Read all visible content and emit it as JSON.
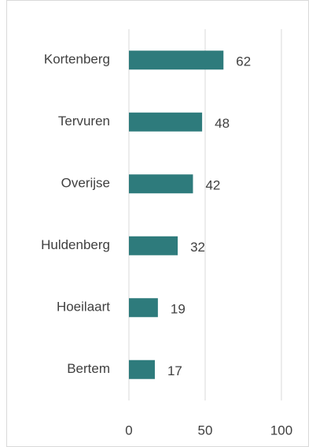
{
  "chart_data": {
    "type": "bar",
    "orientation": "horizontal",
    "categories": [
      "Kortenberg",
      "Tervuren",
      "Overijse",
      "Huldenberg",
      "Hoeilaart",
      "Bertem"
    ],
    "values": [
      62,
      48,
      42,
      32,
      19,
      17
    ],
    "color": "#2e7b7c",
    "xlim": [
      0,
      100
    ],
    "xticks": [
      0,
      50,
      100
    ],
    "grid": true
  }
}
